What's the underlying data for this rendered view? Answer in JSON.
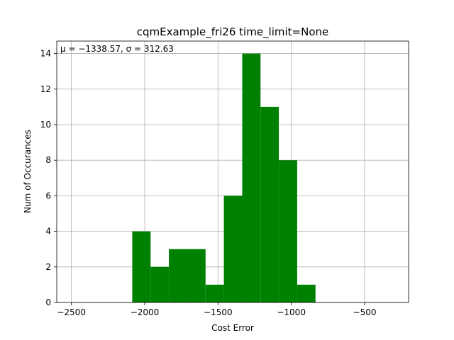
{
  "chart_data": {
    "type": "bar",
    "title": "cqmExample_fri26 time_limit=None",
    "xlabel": "Cost Error",
    "ylabel": "Num of Occurances",
    "annotation": "μ = −1338.57,  σ = 312.63",
    "xlim": [
      -2600,
      -200
    ],
    "ylim": [
      0,
      14.7
    ],
    "grid": true,
    "bar_color": "#008000",
    "x_ticks": [
      -2500,
      -2000,
      -1500,
      -1000,
      -500
    ],
    "x_tick_labels": [
      "−2500",
      "−2000",
      "−1500",
      "−1000",
      "−500"
    ],
    "y_ticks": [
      0,
      2,
      4,
      6,
      8,
      10,
      12,
      14
    ],
    "y_tick_labels": [
      "0",
      "2",
      "4",
      "6",
      "8",
      "10",
      "12",
      "14"
    ],
    "bin_edges": [
      -2085,
      -1960,
      -1835,
      -1710,
      -1585,
      -1460,
      -1335,
      -1210,
      -1085,
      -960,
      -835
    ],
    "counts": [
      4,
      2,
      3,
      3,
      1,
      6,
      14,
      11,
      8,
      1
    ]
  }
}
